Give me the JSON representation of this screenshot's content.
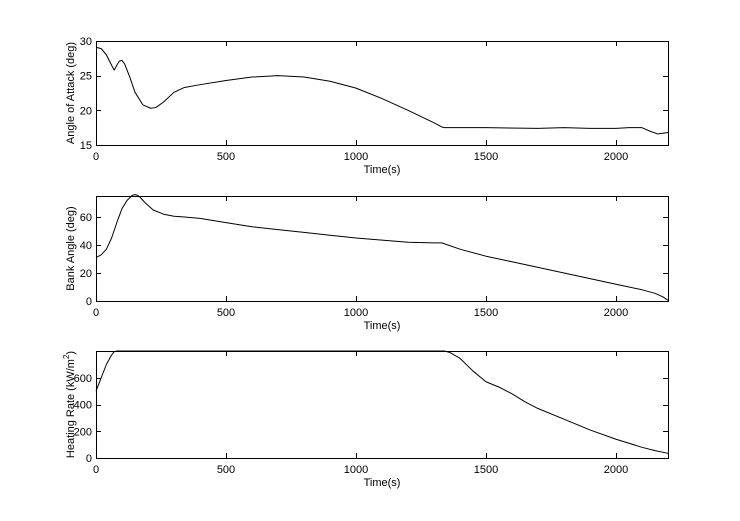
{
  "chart_data": [
    {
      "type": "line",
      "title": "",
      "xlabel": "Time(s)",
      "ylabel": "Angle of Attack (deg)",
      "xlim": [
        0,
        2200
      ],
      "ylim": [
        15,
        30
      ],
      "xticks": [
        0,
        500,
        1000,
        1500,
        2000
      ],
      "yticks": [
        15,
        20,
        25,
        30
      ],
      "grid": false,
      "series": [
        {
          "x": [
            0,
            20,
            40,
            60,
            70,
            80,
            90,
            100,
            110,
            130,
            150,
            180,
            210,
            230,
            260,
            300,
            340,
            400,
            500,
            600,
            700,
            800,
            900,
            1000,
            1100,
            1200,
            1300,
            1330,
            1340,
            1500,
            1700,
            1800,
            1900,
            2000,
            2050,
            2100,
            2130,
            2160,
            2180,
            2200
          ],
          "y": [
            29.1,
            28.9,
            28.0,
            26.5,
            25.8,
            26.5,
            27.1,
            27.2,
            26.7,
            24.8,
            22.6,
            20.8,
            20.3,
            20.4,
            21.2,
            22.6,
            23.3,
            23.7,
            24.3,
            24.8,
            25.0,
            24.8,
            24.2,
            23.2,
            21.7,
            20.0,
            18.2,
            17.6,
            17.5,
            17.5,
            17.4,
            17.5,
            17.4,
            17.4,
            17.5,
            17.5,
            17.0,
            16.6,
            16.7,
            16.8
          ]
        }
      ]
    },
    {
      "type": "line",
      "title": "",
      "xlabel": "Time(s)",
      "ylabel": "Bank Angle (deg)",
      "xlim": [
        0,
        2200
      ],
      "ylim": [
        0,
        75
      ],
      "xticks": [
        0,
        500,
        1000,
        1500,
        2000
      ],
      "yticks": [
        0,
        20,
        40,
        60
      ],
      "grid": false,
      "series": [
        {
          "x": [
            0,
            20,
            40,
            60,
            80,
            100,
            120,
            140,
            150,
            160,
            170,
            190,
            220,
            260,
            300,
            340,
            400,
            500,
            600,
            700,
            800,
            900,
            1000,
            1100,
            1200,
            1300,
            1330,
            1400,
            1500,
            1600,
            1700,
            1800,
            1900,
            2000,
            2100,
            2150,
            2180,
            2200
          ],
          "y": [
            31,
            33,
            37,
            45,
            56,
            66,
            72,
            75.5,
            76,
            75.5,
            74,
            70,
            65,
            62,
            60.5,
            60,
            59,
            56,
            53,
            51,
            49,
            47,
            45,
            43.5,
            42,
            41.5,
            41.5,
            37,
            32,
            28,
            24,
            20,
            16,
            12,
            8,
            5.5,
            3,
            0.5
          ]
        }
      ]
    },
    {
      "type": "line",
      "title": "",
      "xlabel": "Time(s)",
      "ylabel": "Heating Rate (kW/m",
      "ylabel_superscript": "2",
      "ylabel_suffix": ")",
      "xlim": [
        0,
        2200
      ],
      "ylim": [
        0,
        800
      ],
      "xticks": [
        0,
        500,
        1000,
        1500,
        2000
      ],
      "yticks": [
        0,
        200,
        400,
        600
      ],
      "grid": false,
      "series": [
        {
          "x": [
            0,
            20,
            40,
            60,
            70,
            80,
            200,
            400,
            600,
            800,
            1000,
            1200,
            1300,
            1340,
            1360,
            1400,
            1450,
            1500,
            1550,
            1600,
            1650,
            1700,
            1800,
            1900,
            2000,
            2100,
            2150,
            2200
          ],
          "y": [
            500,
            600,
            700,
            770,
            795,
            800,
            800,
            800,
            800,
            800,
            800,
            800,
            800,
            800,
            790,
            745,
            650,
            570,
            530,
            480,
            420,
            370,
            290,
            210,
            140,
            80,
            55,
            35
          ]
        }
      ]
    }
  ]
}
